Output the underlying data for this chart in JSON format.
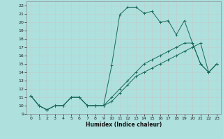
{
  "xlabel": "Humidex (Indice chaleur)",
  "xlim": [
    -0.5,
    23.5
  ],
  "ylim": [
    9,
    22.5
  ],
  "xticks": [
    0,
    1,
    2,
    3,
    4,
    5,
    6,
    7,
    8,
    9,
    10,
    11,
    12,
    13,
    14,
    15,
    16,
    17,
    18,
    19,
    20,
    21,
    22,
    23
  ],
  "yticks": [
    9,
    10,
    11,
    12,
    13,
    14,
    15,
    16,
    17,
    18,
    19,
    20,
    21,
    22
  ],
  "bg_color": "#aee0de",
  "grid_color": "#c0d0ce",
  "line_color": "#1a6b5a",
  "line1_x": [
    0,
    1,
    2,
    3,
    4,
    5,
    6,
    7,
    8,
    9,
    10,
    11,
    12,
    13,
    14,
    15,
    16,
    17,
    18,
    19,
    20,
    21,
    22,
    23
  ],
  "line1_y": [
    11.2,
    10.0,
    9.5,
    10.0,
    10.0,
    11.0,
    11.0,
    10.0,
    10.0,
    10.0,
    14.8,
    20.9,
    21.8,
    21.8,
    21.1,
    21.3,
    20.0,
    20.2,
    18.5,
    20.2,
    17.5,
    15.0,
    14.0,
    15.0
  ],
  "line2_x": [
    0,
    1,
    2,
    3,
    4,
    5,
    6,
    7,
    8,
    9,
    10,
    11,
    12,
    13,
    14,
    15,
    16,
    17,
    18,
    19,
    20,
    21,
    22,
    23
  ],
  "line2_y": [
    11.2,
    10.0,
    9.5,
    10.0,
    10.0,
    11.0,
    11.0,
    10.0,
    10.0,
    10.0,
    10.5,
    11.5,
    12.5,
    13.5,
    14.0,
    14.5,
    15.0,
    15.5,
    16.0,
    16.5,
    17.0,
    17.5,
    14.0,
    15.0
  ],
  "line3_x": [
    0,
    1,
    2,
    3,
    4,
    5,
    6,
    7,
    8,
    9,
    10,
    11,
    12,
    13,
    14,
    15,
    16,
    17,
    18,
    19,
    20,
    21,
    22,
    23
  ],
  "line3_y": [
    11.2,
    10.0,
    9.5,
    10.0,
    10.0,
    11.0,
    11.0,
    10.0,
    10.0,
    10.0,
    11.0,
    12.0,
    13.0,
    14.0,
    15.0,
    15.5,
    16.0,
    16.5,
    17.0,
    17.5,
    17.5,
    15.0,
    14.0,
    15.0
  ]
}
